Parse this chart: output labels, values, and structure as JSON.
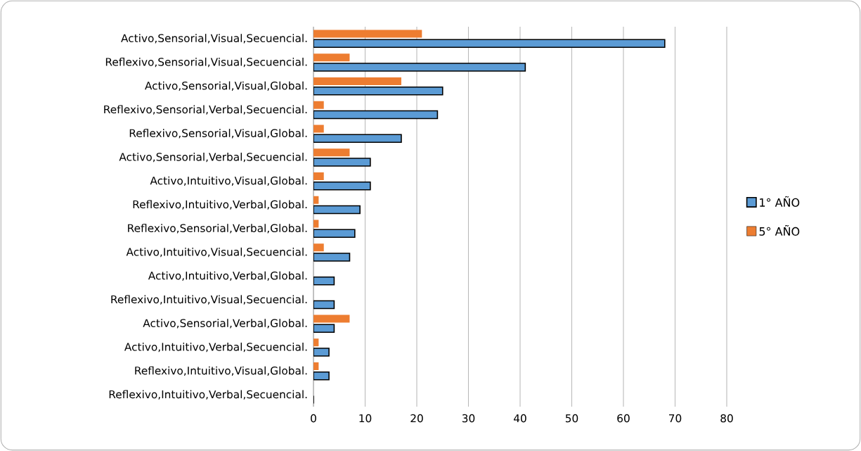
{
  "chart_data": {
    "type": "bar",
    "orientation": "horizontal",
    "categories": [
      "Activo,Sensorial,Visual,Secuencial.",
      "Reflexivo,Sensorial,Visual,Secuencial.",
      "Activo,Sensorial,Visual,Global.",
      "Reflexivo,Sensorial,Verbal,Secuencial.",
      "Reflexivo,Sensorial,Visual,Global.",
      "Activo,Sensorial,Verbal,Secuencial.",
      "Activo,Intuitivo,Visual,Global.",
      "Reflexivo,Intuitivo,Verbal,Global.",
      "Reflexivo,Sensorial,Verbal,Global.",
      "Activo,Intuitivo,Visual,Secuencial.",
      "Activo,Intuitivo,Verbal,Global.",
      "Reflexivo,Intuitivo,Visual,Secuencial.",
      "Activo,Sensorial,Verbal,Global.",
      "Activo,Intuitivo,Verbal,Secuencial.",
      "Reflexivo,Intuitivo,Visual,Global.",
      "Reflexivo,Intuitivo,Verbal,Secuencial."
    ],
    "series": [
      {
        "name": "1° AÑO",
        "color": "#5b9bd5",
        "values": [
          68,
          41,
          25,
          24,
          17,
          11,
          11,
          9,
          8,
          7,
          4,
          4,
          4,
          3,
          3,
          0
        ]
      },
      {
        "name": "5° AÑO",
        "color": "#ed7d31",
        "values": [
          21,
          7,
          17,
          2,
          2,
          7,
          2,
          1,
          1,
          2,
          0,
          0,
          7,
          1,
          1,
          0
        ]
      }
    ],
    "xlim": [
      0,
      80
    ],
    "xticks": [
      0,
      10,
      20,
      30,
      40,
      50,
      60,
      70,
      80
    ],
    "grid": "x",
    "legend": "right"
  }
}
